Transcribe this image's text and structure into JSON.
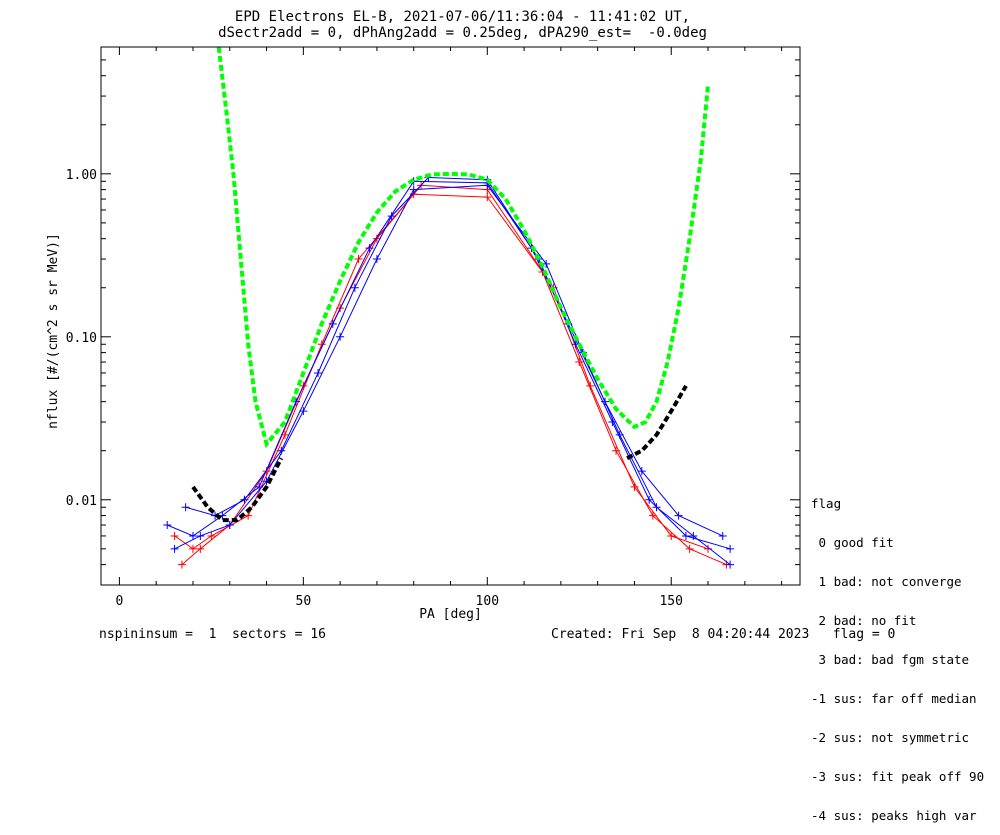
{
  "header": {
    "title_line1": "EPD Electrons EL-B, 2021-07-06/11:36:04 - 11:41:02 UT,",
    "title_line2": "dSectr2add = 0, dPhAng2add = 0.25deg, dPA290_est=  -0.0deg"
  },
  "legend": {
    "title": "flag",
    "items": [
      " 0 good fit",
      " 1 bad: not converge",
      " 2 bad: no fit",
      " 3 bad: bad fgm state",
      "-1 sus: far off median",
      "-2 sus: not symmetric",
      "-3 sus: fit peak off 90",
      "-4 sus: peaks high var"
    ]
  },
  "footer": {
    "left": "nspininsum =  1  sectors = 16",
    "right": "Created: Fri Sep  8 04:20:44 2023   flag = 0"
  },
  "colors": {
    "series_red": "#ff0000",
    "series_blue": "#0000ff",
    "fit_green": "#00ff00",
    "fit_black": "#000000"
  },
  "chart_data": {
    "type": "line",
    "xlabel": "PA [deg]",
    "ylabel": "nflux [#/(cm^2 s sr MeV)]",
    "xlim": [
      -5,
      185
    ],
    "ylim": [
      0.003,
      6
    ],
    "yscale": "log",
    "x_ticks": [
      0,
      50,
      100,
      150
    ],
    "y_ticks": [
      {
        "value": 0.01,
        "label": "0.01"
      },
      {
        "value": 0.1,
        "label": "0.10"
      },
      {
        "value": 1.0,
        "label": "1.00"
      }
    ],
    "grid": false,
    "legend_position": "right-bottom, outside plot",
    "series": [
      {
        "color": "red",
        "x": [
          15,
          20,
          25,
          35,
          45,
          55,
          65,
          80,
          100,
          115,
          125,
          135,
          145,
          155,
          165
        ],
        "y": [
          0.006,
          0.005,
          0.006,
          0.008,
          0.025,
          0.09,
          0.3,
          0.75,
          0.72,
          0.25,
          0.07,
          0.02,
          0.008,
          0.005,
          0.004
        ]
      },
      {
        "color": "red",
        "x": [
          17,
          22,
          30,
          40,
          50,
          60,
          70,
          82,
          100,
          118,
          128,
          140,
          150,
          160
        ],
        "y": [
          0.004,
          0.005,
          0.007,
          0.015,
          0.05,
          0.15,
          0.4,
          0.85,
          0.8,
          0.2,
          0.05,
          0.012,
          0.006,
          0.005
        ]
      },
      {
        "color": "blue",
        "x": [
          13,
          20,
          28,
          38,
          48,
          58,
          68,
          80,
          100,
          114,
          124,
          134,
          144,
          154,
          166
        ],
        "y": [
          0.007,
          0.006,
          0.008,
          0.012,
          0.04,
          0.12,
          0.35,
          0.9,
          0.88,
          0.3,
          0.09,
          0.03,
          0.01,
          0.006,
          0.005
        ]
      },
      {
        "color": "blue",
        "x": [
          18,
          26,
          34,
          44,
          54,
          64,
          74,
          84,
          100,
          112,
          122,
          132,
          142,
          152,
          164
        ],
        "y": [
          0.009,
          0.008,
          0.01,
          0.02,
          0.06,
          0.2,
          0.55,
          0.95,
          0.92,
          0.35,
          0.12,
          0.04,
          0.015,
          0.008,
          0.006
        ]
      },
      {
        "color": "blue",
        "x": [
          15,
          22,
          30,
          40,
          50,
          60,
          70,
          80,
          100,
          116,
          126,
          136,
          146,
          156,
          166
        ],
        "y": [
          0.005,
          0.006,
          0.007,
          0.013,
          0.035,
          0.1,
          0.3,
          0.8,
          0.85,
          0.28,
          0.08,
          0.025,
          0.009,
          0.006,
          0.004
        ]
      }
    ],
    "fits": [
      {
        "color": "green",
        "x": [
          27,
          29,
          31,
          33,
          35,
          37,
          40,
          45,
          50,
          55,
          60,
          65,
          70,
          75,
          80,
          85,
          90,
          95,
          100,
          105,
          110,
          115,
          120,
          125,
          130,
          135,
          140,
          143,
          146,
          149,
          152,
          155,
          158,
          160
        ],
        "y": [
          6,
          2.5,
          1.0,
          0.3,
          0.09,
          0.04,
          0.022,
          0.03,
          0.06,
          0.12,
          0.22,
          0.38,
          0.58,
          0.78,
          0.92,
          0.99,
          1.0,
          0.99,
          0.92,
          0.7,
          0.45,
          0.27,
          0.15,
          0.09,
          0.055,
          0.036,
          0.028,
          0.03,
          0.04,
          0.07,
          0.15,
          0.4,
          1.2,
          3.5
        ]
      },
      {
        "color": "black",
        "x": [
          20,
          24,
          28,
          32,
          36,
          40,
          44
        ],
        "y": [
          0.012,
          0.009,
          0.0075,
          0.0075,
          0.009,
          0.012,
          0.018
        ]
      },
      {
        "color": "black",
        "x": [
          138,
          142,
          146,
          150,
          154
        ],
        "y": [
          0.018,
          0.02,
          0.025,
          0.035,
          0.05
        ]
      }
    ]
  }
}
